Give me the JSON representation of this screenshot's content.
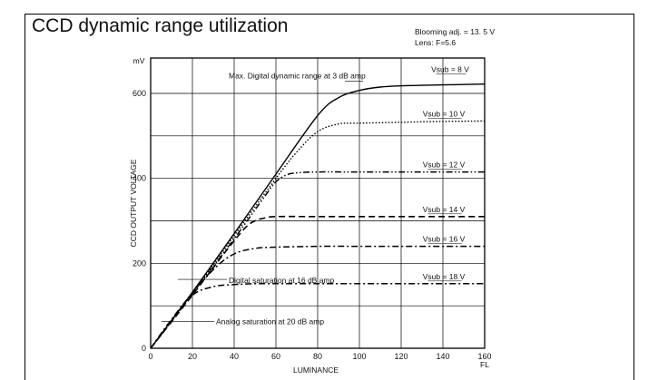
{
  "title": "CCD dynamic range utilization",
  "notes": [
    "Blooming adj. = 13. 5 V",
    "Lens: F=5.6"
  ],
  "chart_data": {
    "type": "line",
    "title": "CCD dynamic range utilization",
    "xlabel": "LUMINANCE",
    "x_unit": "FL",
    "ylabel": "CCD OUTPUT VOLTAGE",
    "y_unit": "mV",
    "xlim": [
      0,
      160
    ],
    "ylim": [
      0,
      600
    ],
    "xticks": [
      0,
      20,
      40,
      60,
      80,
      100,
      120,
      140,
      160
    ],
    "yticks": [
      0,
      200,
      400,
      600
    ],
    "grid": true,
    "series": [
      {
        "name": "Vsub = 8 V",
        "dash": "solid",
        "x": [
          0,
          20,
          40,
          60,
          80,
          90,
          100,
          110,
          120,
          140,
          160
        ],
        "y": [
          0,
          132,
          270,
          410,
          548,
          590,
          607,
          615,
          618,
          620,
          622
        ]
      },
      {
        "name": "Vsub = 10 V",
        "dash": "dot",
        "x": [
          0,
          20,
          40,
          60,
          70,
          80,
          90,
          100,
          120,
          140,
          160
        ],
        "y": [
          0,
          130,
          265,
          400,
          462,
          510,
          528,
          530,
          532,
          534,
          535
        ]
      },
      {
        "name": "Vsub = 12 V",
        "dash": "dashdotdot",
        "x": [
          0,
          20,
          40,
          55,
          60,
          65,
          70,
          80,
          100,
          120,
          140,
          160
        ],
        "y": [
          0,
          128,
          258,
          360,
          392,
          408,
          413,
          415,
          415,
          415,
          415,
          415
        ]
      },
      {
        "name": "Vsub = 14 V",
        "dash": "dash",
        "x": [
          0,
          20,
          35,
          45,
          50,
          55,
          60,
          80,
          100,
          120,
          140,
          160
        ],
        "y": [
          0,
          125,
          222,
          282,
          300,
          307,
          310,
          310,
          310,
          310,
          310,
          310
        ]
      },
      {
        "name": "Vsub = 16 V",
        "dash": "dashdot",
        "x": [
          0,
          15,
          30,
          40,
          50,
          60,
          80,
          100,
          120,
          140,
          160
        ],
        "y": [
          0,
          100,
          185,
          222,
          235,
          238,
          240,
          240,
          240,
          240,
          240
        ]
      },
      {
        "name": "Vsub = 18 V",
        "dash": "dashdot",
        "x": [
          0,
          10,
          20,
          30,
          40,
          50,
          60,
          80,
          100,
          120,
          140,
          160
        ],
        "y": [
          0,
          68,
          125,
          145,
          150,
          152,
          152,
          152,
          152,
          152,
          152,
          152
        ]
      }
    ],
    "annotations": [
      {
        "text": "Max. Digital dynamic range at 3 dB amp",
        "x": 60,
        "y": 625
      },
      {
        "text": "Digital saturation at 16 dB amp",
        "x": 21,
        "y": 160
      },
      {
        "text": "Analog saturation at 20 dB amp",
        "x": 22,
        "y": 65
      }
    ]
  }
}
